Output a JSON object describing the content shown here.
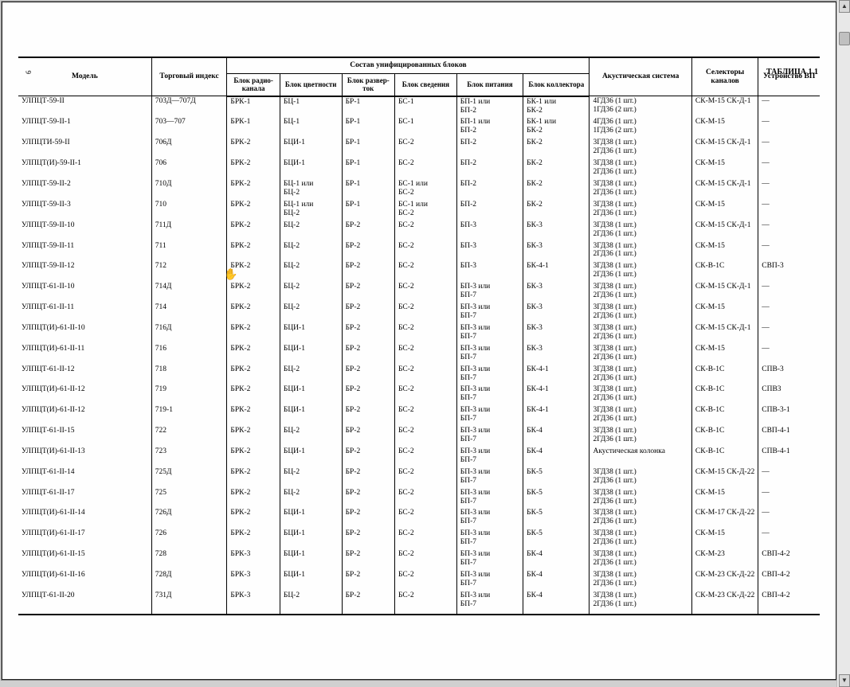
{
  "page_number": "6",
  "table_label": "ТАБЛИЦА 1.1",
  "headers": {
    "model": "Модель",
    "index": "Торговый индекс",
    "composite": "Состав унифицированных блоков",
    "brk": "Блок радио-канала",
    "bc": "Блок цветности",
    "br": "Блок развер-ток",
    "bs": "Блок сведения",
    "bp": "Блок питания",
    "bk": "Блок коллектора",
    "ak": "Акустическая система",
    "sk": "Селекторы каналов",
    "vp": "Устройство ВП"
  },
  "rows": [
    {
      "model": "УЛПЦТ-59-II",
      "idx": "703Д—707Д",
      "brk": "БРК-1",
      "bc": "БЦ-1",
      "br": "БР-1",
      "bs": "БС-1",
      "bp": "БП-1 или БП-2",
      "bk": "БК-1 или БК-2",
      "ak": "4ГД36 (1 шт.) 1ГД36 (2 шт.)",
      "sk": "СК-М-15 СК-Д-1",
      "vp": "—"
    },
    {
      "model": "УЛПЦТ-59-II-1",
      "idx": "703—707",
      "brk": "БРК-1",
      "bc": "БЦ-1",
      "br": "БР-1",
      "bs": "БС-1",
      "bp": "БП-1 или БП-2",
      "bk": "БК-1 или БК-2",
      "ak": "4ГД36 (1 шт.) 1ГД36 (2 шт.)",
      "sk": "СК-М-15",
      "vp": "—"
    },
    {
      "model": "УЛПЦТИ-59-II",
      "idx": "706Д",
      "brk": "БРК-2",
      "bc": "БЦИ-1",
      "br": "БР-1",
      "bs": "БС-2",
      "bp": "БП-2",
      "bk": "БК-2",
      "ak": "3ГД38 (1 шт.) 2ГД36 (1 шт.)",
      "sk": "СК-М-15 СК-Д-1",
      "vp": "—"
    },
    {
      "model": "УЛПЦТ(И)-59-II-1",
      "idx": "706",
      "brk": "БРК-2",
      "bc": "БЦИ-1",
      "br": "БР-1",
      "bs": "БС-2",
      "bp": "БП-2",
      "bk": "БК-2",
      "ak": "3ГД38 (1 шт.) 2ГД36 (1 шт.)",
      "sk": "СК-М-15",
      "vp": "—"
    },
    {
      "model": "УЛПЦТ-59-II-2",
      "idx": "710Д",
      "brk": "БРК-2",
      "bc": "БЦ-1 или БЦ-2",
      "br": "БР-1",
      "bs": "БС-1 или БС-2",
      "bp": "БП-2",
      "bk": "БК-2",
      "ak": "3ГД38 (1 шт.) 2ГД36 (1 шт.)",
      "sk": "СК-М-15 СК-Д-1",
      "vp": "—"
    },
    {
      "model": "УЛПЦТ-59-II-3",
      "idx": "710",
      "brk": "БРК-2",
      "bc": "БЦ-1 или БЦ-2",
      "br": "БР-1",
      "bs": "БС-1 или БС-2",
      "bp": "БП-2",
      "bk": "БК-2",
      "ak": "3ГД38 (1 шт.) 2ГД36 (1 шт.)",
      "sk": "СК-М-15",
      "vp": "—"
    },
    {
      "model": "УЛПЦТ-59-II-10",
      "idx": "711Д",
      "brk": "БРК-2",
      "bc": "БЦ-2",
      "br": "БР-2",
      "bs": "БС-2",
      "bp": "БП-3",
      "bk": "БК-3",
      "ak": "3ГД38 (1 шт.) 2ГД36 (1 шт.)",
      "sk": "СК-М-15 СК-Д-1",
      "vp": "—"
    },
    {
      "model": "УЛПЦТ-59-II-11",
      "idx": "711",
      "brk": "БРК-2",
      "bc": "БЦ-2",
      "br": "БР-2",
      "bs": "БС-2",
      "bp": "БП-3",
      "bk": "БК-3",
      "ak": "3ГД38 (1 шт.) 2ГД36 (1 шт.)",
      "sk": "СК-М-15",
      "vp": "—"
    },
    {
      "model": "УЛПЦТ-59-II-12",
      "idx": "712",
      "brk": "БРК-2",
      "bc": "БЦ-2",
      "br": "БР-2",
      "bs": "БС-2",
      "bp": "БП-3",
      "bk": "БК-4-1",
      "ak": "3ГД38 (1 шт.) 2ГД36 (1 шт.)",
      "sk": "СК-В-1С",
      "vp": "СВП-3"
    },
    {
      "model": "УЛПЦТ-61-II-10",
      "idx": "714Д",
      "brk": "БРК-2",
      "bc": "БЦ-2",
      "br": "БР-2",
      "bs": "БС-2",
      "bp": "БП-3 или БП-7",
      "bk": "БК-3",
      "ak": "3ГД38 (1 шт.) 2ГД36 (1 шт.)",
      "sk": "СК-М-15 СК-Д-1",
      "vp": "—"
    },
    {
      "model": "УЛПЦТ-61-II-11",
      "idx": "714",
      "brk": "БРК-2",
      "bc": "БЦ-2",
      "br": "БР-2",
      "bs": "БС-2",
      "bp": "БП-3 или БП-7",
      "bk": "БК-3",
      "ak": "3ГД38 (1 шт.) 2ГД36 (1 шт.)",
      "sk": "СК-М-15",
      "vp": "—"
    },
    {
      "model": "УЛПЦТ(И)-61-II-10",
      "idx": "716Д",
      "brk": "БРК-2",
      "bc": "БЦИ-1",
      "br": "БР-2",
      "bs": "БС-2",
      "bp": "БП-3 или БП-7",
      "bk": "БК-3",
      "ak": "3ГД38 (1 шт.) 2ГД36 (1 шт.)",
      "sk": "СК-М-15 СК-Д-1",
      "vp": "—"
    },
    {
      "model": "УЛПЦТ(И)-61-II-11",
      "idx": "716",
      "brk": "БРК-2",
      "bc": "БЦИ-1",
      "br": "БР-2",
      "bs": "БС-2",
      "bp": "БП-3 или БП-7",
      "bk": "БК-3",
      "ak": "3ГД38 (1 шт.) 2ГД36 (1 шт.)",
      "sk": "СК-М-15",
      "vp": "—"
    },
    {
      "model": "УЛПЦТ-61-II-12",
      "idx": "718",
      "brk": "БРК-2",
      "bc": "БЦ-2",
      "br": "БР-2",
      "bs": "БС-2",
      "bp": "БП-3 или БП-7",
      "bk": "БК-4-1",
      "ak": "3ГД38 (1 шт.) 2ГД36 (1 шт.)",
      "sk": "СК-В-1С",
      "vp": "СПВ-3"
    },
    {
      "model": "УЛПЦТ(И)-61-II-12",
      "idx": "719",
      "brk": "БРК-2",
      "bc": "БЦИ-1",
      "br": "БР-2",
      "bs": "БС-2",
      "bp": "БП-3 или БП-7",
      "bk": "БК-4-1",
      "ak": "3ГД38 (1 шт.) 2ГД36 (1 шт.)",
      "sk": "СК-В-1С",
      "vp": "СПВ3"
    },
    {
      "model": "УЛПЦТ(И)-61-II-12",
      "idx": "719-1",
      "brk": "БРК-2",
      "bc": "БЦИ-1",
      "br": "БР-2",
      "bs": "БС-2",
      "bp": "БП-3 или БП-7",
      "bk": "БК-4-1",
      "ak": "3ГД38 (1 шт.) 2ГД36 (1 шт.)",
      "sk": "СК-В-1С",
      "vp": "СПВ-3-1"
    },
    {
      "model": "УЛПЦТ-61-II-15",
      "idx": "722",
      "brk": "БРК-2",
      "bc": "БЦ-2",
      "br": "БР-2",
      "bs": "БС-2",
      "bp": "БП-3 или БП-7",
      "bk": "БК-4",
      "ak": "3ГД38 (1 шт.) 2ГД36 (1 шт.)",
      "sk": "СК-В-1С",
      "vp": "СВП-4-1"
    },
    {
      "model": "УЛПЦТ(И)-61-II-13",
      "idx": "723",
      "brk": "БРК-2",
      "bc": "БЦИ-1",
      "br": "БР-2",
      "bs": "БС-2",
      "bp": "БП-3 или БП-7",
      "bk": "БК-4",
      "ak": "Акустическая колонка",
      "sk": "СК-В-1С",
      "vp": "СПВ-4-1"
    },
    {
      "model": "УЛПЦТ-61-II-14",
      "idx": "725Д",
      "brk": "БРК-2",
      "bc": "БЦ-2",
      "br": "БР-2",
      "bs": "БС-2",
      "bp": "БП-3 или БП-7",
      "bk": "БК-5",
      "ak": "3ГД38 (1 шт.) 2ГД36 (1 шт.)",
      "sk": "СК-М-15 СК-Д-22",
      "vp": "—"
    },
    {
      "model": "УЛПЦТ-61-II-17",
      "idx": "725",
      "brk": "БРК-2",
      "bc": "БЦ-2",
      "br": "БР-2",
      "bs": "БС-2",
      "bp": "БП-3 или БП-7",
      "bk": "БК-5",
      "ak": "3ГД38 (1 шт.) 2ГД36 (1 шт.)",
      "sk": "СК-М-15",
      "vp": "—"
    },
    {
      "model": "УЛПЦТ(И)-61-II-14",
      "idx": "726Д",
      "brk": "БРК-2",
      "bc": "БЦИ-1",
      "br": "БР-2",
      "bs": "БС-2",
      "bp": "БП-3 или БП-7",
      "bk": "БК-5",
      "ak": "3ГД38 (1 шт.) 2ГД36 (1 шт.)",
      "sk": "СК-М-17 СК-Д-22",
      "vp": "—"
    },
    {
      "model": "УЛПЦТ(И)-61-II-17",
      "idx": "726",
      "brk": "БРК-2",
      "bc": "БЦИ-1",
      "br": "БР-2",
      "bs": "БС-2",
      "bp": "БП-3 или БП-7",
      "bk": "БК-5",
      "ak": "3ГД38 (1 шт.) 2ГД36 (1 шт.)",
      "sk": "СК-М-15",
      "vp": "—"
    },
    {
      "model": "УЛПЦТ(И)-61-II-15",
      "idx": "728",
      "brk": "БРК-3",
      "bc": "БЦИ-1",
      "br": "БР-2",
      "bs": "БС-2",
      "bp": "БП-3 или БП-7",
      "bk": "БК-4",
      "ak": "3ГД38 (1 шт.) 2ГД36 (1 шт.)",
      "sk": "СК-М-23",
      "vp": "СВП-4-2"
    },
    {
      "model": "УЛПЦТ(И)-61-II-16",
      "idx": "728Д",
      "brk": "БРК-3",
      "bc": "БЦИ-1",
      "br": "БР-2",
      "bs": "БС-2",
      "bp": "БП-3 или БП-7",
      "bk": "БК-4",
      "ak": "3ГД38 (1 шт.) 2ГД36 (1 шт.)",
      "sk": "СК-М-23 СК-Д-22",
      "vp": "СВП-4-2"
    },
    {
      "model": "УЛПЦТ-61-II-20",
      "idx": "731Д",
      "brk": "БРК-3",
      "bc": "БЦ-2",
      "br": "БР-2",
      "bs": "БС-2",
      "bp": "БП-3 или БП-7",
      "bk": "БК-4",
      "ak": "3ГД38 (1 шт.) 2ГД36 (1 шт.)",
      "sk": "СК-М-23 СК-Д-22",
      "vp": "СВП-4-2"
    }
  ]
}
